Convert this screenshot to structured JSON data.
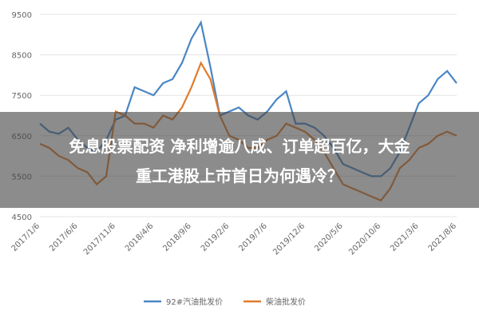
{
  "chart_data": {
    "type": "line",
    "headline": [
      "免息股票配资 净利增逾八成、订单超百亿，大金",
      "重工港股上市首日为何遇冷？"
    ],
    "categories": [
      "2017/1/6",
      null,
      null,
      null,
      "2017/6/6",
      null,
      null,
      null,
      "2017/11/6",
      null,
      null,
      null,
      "2018/4/6",
      null,
      null,
      null,
      "2018/9/6",
      null,
      null,
      null,
      "2019/2/6",
      null,
      null,
      null,
      "2019/7/6",
      null,
      null,
      null,
      "2019/12/6",
      null,
      null,
      null,
      "2020/5/6",
      null,
      null,
      null,
      "2020/10/6",
      null,
      null,
      null,
      "2021/3/6",
      null,
      null,
      null,
      "2021/8/6"
    ],
    "series": [
      {
        "name": "92#汽油批发价",
        "color": "#4a86c5",
        "values": [
          6800,
          6600,
          6550,
          6700,
          6400,
          6200,
          6100,
          6400,
          6900,
          7000,
          7700,
          7600,
          7500,
          7800,
          7900,
          8300,
          8900,
          9300,
          8200,
          7000,
          7100,
          7200,
          7000,
          6900,
          7100,
          7400,
          7600,
          6800,
          6800,
          6700,
          6500,
          6200,
          5800,
          5700,
          5600,
          5500,
          5500,
          5700,
          6100,
          6700,
          7300,
          7500,
          7900,
          8100,
          7800
        ]
      },
      {
        "name": "柴油批发价",
        "color": "#e07b2c",
        "values": [
          6300,
          6200,
          6000,
          5900,
          5700,
          5600,
          5300,
          5500,
          7100,
          7000,
          6800,
          6800,
          6700,
          7000,
          6900,
          7200,
          7700,
          8300,
          7900,
          7000,
          6500,
          6400,
          6200,
          6200,
          6400,
          6500,
          6800,
          6700,
          6600,
          6400,
          6100,
          5700,
          5300,
          5200,
          5100,
          5000,
          4900,
          5200,
          5700,
          5900,
          6200,
          6300,
          6500,
          6600,
          6500
        ]
      }
    ],
    "ylim": [
      4500,
      9500
    ],
    "yticks": [
      4500,
      5500,
      6500,
      7500,
      8500,
      9500
    ],
    "grid": true
  }
}
